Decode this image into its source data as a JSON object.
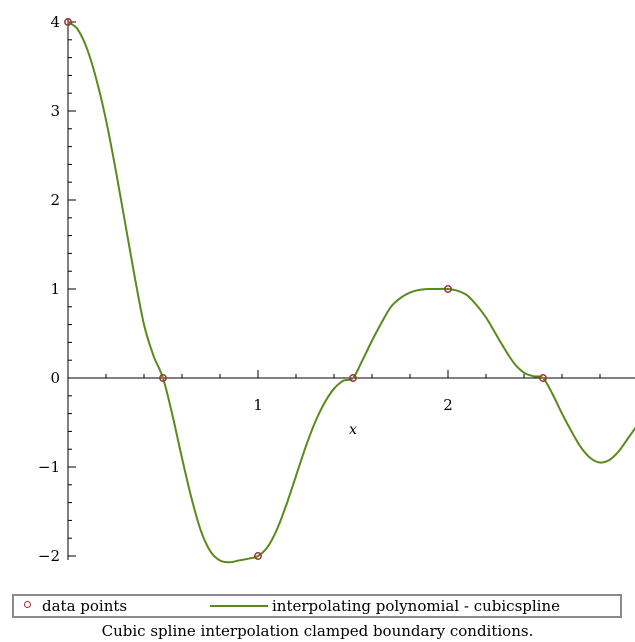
{
  "chart_data": {
    "type": "line",
    "xlabel": "x",
    "ylabel": "",
    "xlim": [
      0,
      3.0
    ],
    "ylim": [
      -2,
      4
    ],
    "x_ticks": [
      "1",
      "2"
    ],
    "y_ticks": [
      "4",
      "3",
      "2",
      "1",
      "0",
      "−1",
      "−2"
    ],
    "series": [
      {
        "name": "data points",
        "style": "circle",
        "color": "#a0303a",
        "x": [
          0,
          0.5,
          1.0,
          1.5,
          2.0,
          2.5
        ],
        "y": [
          4,
          0,
          -2,
          0,
          1,
          0
        ]
      },
      {
        "name": "interpolating polynomial - cubicspline",
        "style": "line",
        "color": "#5a8a1c",
        "x": [
          0,
          0.05,
          0.1,
          0.15,
          0.2,
          0.25,
          0.3,
          0.35,
          0.4,
          0.45,
          0.5,
          0.55,
          0.6,
          0.65,
          0.7,
          0.75,
          0.8,
          0.85,
          0.9,
          0.95,
          1.0,
          1.05,
          1.1,
          1.15,
          1.2,
          1.25,
          1.3,
          1.35,
          1.4,
          1.45,
          1.5,
          1.55,
          1.6,
          1.65,
          1.7,
          1.75,
          1.8,
          1.85,
          1.9,
          1.95,
          2.0,
          2.05,
          2.1,
          2.15,
          2.2,
          2.25,
          2.3,
          2.35,
          2.4,
          2.45,
          2.5,
          2.55,
          2.6,
          2.65,
          2.7,
          2.75,
          2.8,
          2.85,
          2.9,
          2.95,
          3.0
        ],
        "y": [
          4.0,
          3.92,
          3.7,
          3.35,
          2.9,
          2.35,
          1.75,
          1.15,
          0.6,
          0.25,
          0.0,
          -0.42,
          -0.9,
          -1.35,
          -1.72,
          -1.95,
          -2.05,
          -2.07,
          -2.05,
          -2.03,
          -2.0,
          -1.9,
          -1.7,
          -1.42,
          -1.1,
          -0.78,
          -0.5,
          -0.28,
          -0.12,
          -0.03,
          0.0,
          0.2,
          0.42,
          0.62,
          0.8,
          0.9,
          0.96,
          0.99,
          1.0,
          1.0,
          1.0,
          0.98,
          0.93,
          0.82,
          0.68,
          0.5,
          0.32,
          0.16,
          0.06,
          0.02,
          0.0,
          -0.18,
          -0.4,
          -0.6,
          -0.78,
          -0.9,
          -0.95,
          -0.92,
          -0.82,
          -0.67,
          -0.52
        ]
      }
    ],
    "legend": "bottom",
    "grid": false,
    "caption": "Cubic spline interpolation clamped boundary conditions."
  },
  "legend_labels": {
    "points": "data points",
    "line": "interpolating polynomial - cubicspline"
  }
}
